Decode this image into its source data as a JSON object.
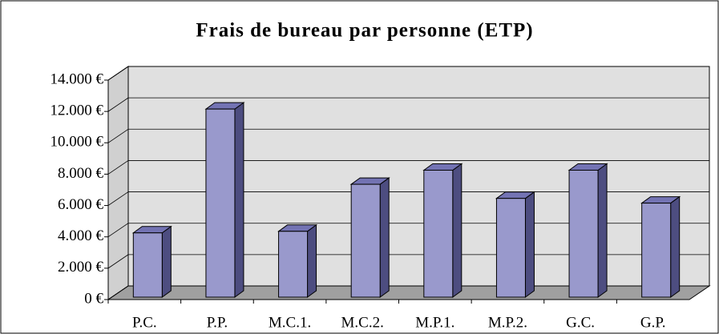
{
  "chart_data": {
    "type": "bar3d",
    "title": "Frais de bureau par personne (ETP)",
    "categories": [
      "P.C.",
      "P.P.",
      "M.C.1.",
      "M.C.2.",
      "M.P.1.",
      "M.P.2.",
      "G.C.",
      "G.P."
    ],
    "values": [
      4100,
      12000,
      4200,
      7200,
      8100,
      6300,
      8100,
      6000
    ],
    "color": "#9999cc",
    "ylim": [
      0,
      14000
    ],
    "yticks": [
      {
        "value": 0,
        "label": "0 €"
      },
      {
        "value": 2000,
        "label": "2.000 €"
      },
      {
        "value": 4000,
        "label": "4.000 €"
      },
      {
        "value": 6000,
        "label": "6.000 €"
      },
      {
        "value": 8000,
        "label": "8.000 €"
      },
      {
        "value": 10000,
        "label": "10.000 €"
      },
      {
        "value": 12000,
        "label": "12.000 €"
      },
      {
        "value": 14000,
        "label": "14.000 €"
      }
    ],
    "grid": true
  }
}
